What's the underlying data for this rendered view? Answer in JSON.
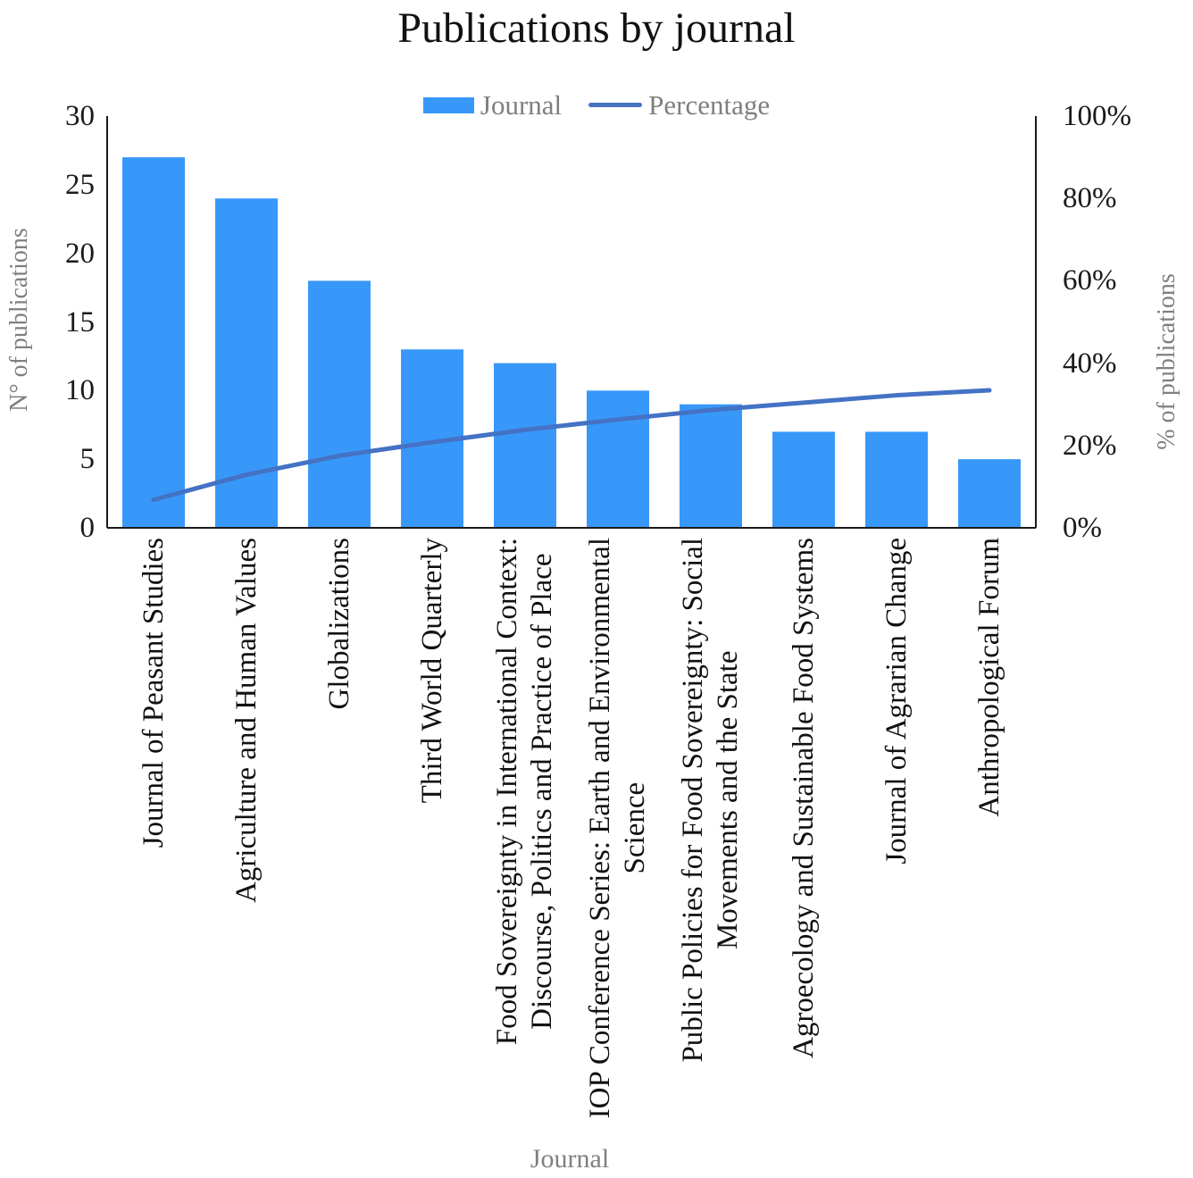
{
  "title": "Publications by journal",
  "legend": {
    "bar_label": "Journal",
    "line_label": "Percentage"
  },
  "left_axis_title": "N° of publications",
  "right_axis_title": "% of publications",
  "x_axis_title": "Journal",
  "colors": {
    "bar": "#3898FA",
    "line": "#4472C4",
    "axis": "#1a1a1a",
    "muted_text": "#7f7f7f",
    "tick_text": "#111111"
  },
  "chart_data": {
    "type": "bar",
    "subtype": "pareto-combo (bars + cumulative percentage line)",
    "title": "Publications by journal",
    "categories": [
      "Journal of Peasant Studies",
      "Agriculture and Human Values",
      "Globalizations",
      "Third World Quarterly",
      "Food Sovereignty in International Context: Discourse, Politics and Practice of Place",
      "IOP Conference Series: Earth and Environmental Science",
      "Public Policies for Food Sovereignty: Social Movements and the State",
      "Agroecology and Sustainable Food Systems",
      "Journal of Agrarian Change",
      "Anthropological Forum"
    ],
    "category_label_lines": [
      [
        "Journal of Peasant Studies"
      ],
      [
        "Agriculture and Human Values"
      ],
      [
        "Globalizations"
      ],
      [
        "Third World Quarterly"
      ],
      [
        "Food Sovereignty in International Context:",
        "Discourse, Politics and Practice of Place"
      ],
      [
        "IOP Conference Series: Earth and Environmental",
        "Science"
      ],
      [
        "Public Policies for Food Sovereignty: Social",
        "Movements and the State"
      ],
      [
        "Agroecology and Sustainable Food Systems"
      ],
      [
        "Journal of Agrarian Change"
      ],
      [
        "Anthropological Forum"
      ]
    ],
    "series": [
      {
        "name": "Journal",
        "type": "bar",
        "axis": "left",
        "color": "#3898FA",
        "values": [
          27,
          24,
          18,
          13,
          12,
          10,
          9,
          7,
          7,
          5
        ]
      },
      {
        "name": "Percentage",
        "type": "line",
        "axis": "right",
        "color": "#4472C4",
        "values_percent": [
          6.8,
          12.9,
          17.5,
          20.8,
          23.8,
          26.3,
          28.6,
          30.4,
          32.2,
          33.4
        ]
      }
    ],
    "left_axis": {
      "label": "N° of publications",
      "min": 0,
      "max": 30,
      "tick_step": 5,
      "ticks": [
        "0",
        "5",
        "10",
        "15",
        "20",
        "25",
        "30"
      ]
    },
    "right_axis": {
      "label": "% of publications",
      "min": 0,
      "max": 100,
      "tick_step": 20,
      "ticks": [
        "0%",
        "20%",
        "40%",
        "60%",
        "80%",
        "100%"
      ]
    },
    "x_axis": {
      "label": "Journal"
    },
    "legend_position": "top-center",
    "grid": false
  }
}
